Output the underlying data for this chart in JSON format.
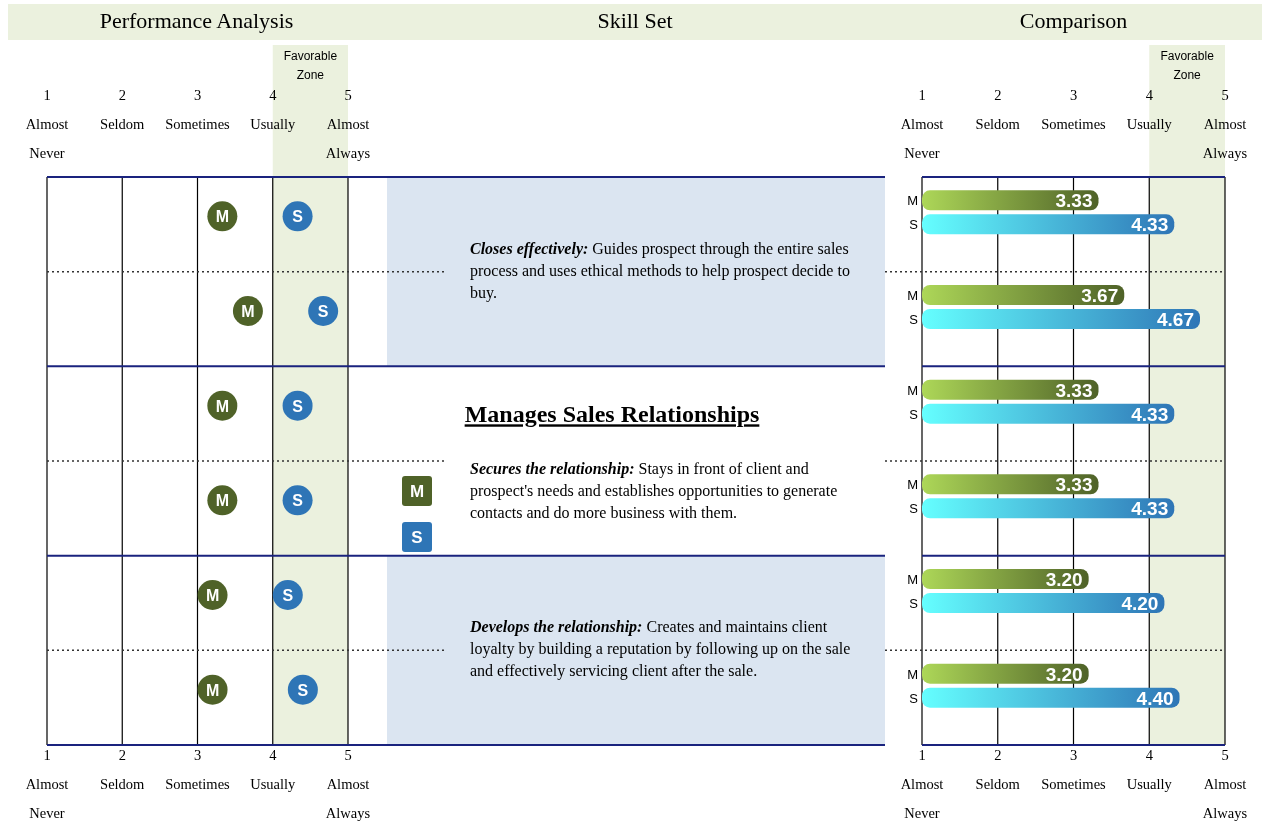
{
  "chart_data": [
    {
      "type": "scatter",
      "title": "Performance Analysis",
      "orientation": "horizontal",
      "categories": [
        null,
        null,
        null,
        null,
        null,
        null
      ],
      "series": [
        {
          "name": "M",
          "color": "#4f6228",
          "values": [
            3.33,
            3.67,
            3.33,
            3.33,
            3.2,
            3.2
          ]
        },
        {
          "name": "S",
          "color": "#2e75b6",
          "values": [
            4.33,
            4.67,
            4.33,
            4.33,
            4.2,
            4.4
          ]
        }
      ],
      "xlim": [
        1,
        5
      ],
      "xticks": [
        {
          "value": 1,
          "label": "1\nAlmost\nNever"
        },
        {
          "value": 2,
          "label": "2\nSeldom"
        },
        {
          "value": 3,
          "label": "3\nSometimes"
        },
        {
          "value": 4,
          "label": "4\nUsually"
        },
        {
          "value": 5,
          "label": "5\nAlmost\nAlways"
        }
      ],
      "x2lim": [
        1,
        5
      ],
      "x2ticks": [
        {
          "value": 1,
          "label": "1\nAlmost\nNever"
        },
        {
          "value": 2,
          "label": "2\nSeldom"
        },
        {
          "value": 3,
          "label": "3\nSometimes"
        },
        {
          "value": 4,
          "label": "4\nUsually"
        },
        {
          "value": 5,
          "label": "5\nAlmost\nAlways"
        }
      ],
      "bands": [
        {
          "axis": "x",
          "from": 4,
          "to": 5,
          "label": "Favorable Zone",
          "color": "#ebf1de"
        }
      ],
      "grid": "x",
      "marker": "circle",
      "legend": "right"
    },
    {
      "type": "other",
      "title": "Skill Set",
      "subtitle": "Manages Sales Relationships",
      "annotations": [
        "Closes effectively: Guides prospect through the entire sales process and uses ethical methods to help prospect decide to buy.",
        "Secures the relationship: Stays in front of client and prospect's needs and establishes opportunities to generate contacts and do more business with them.",
        "Develops the relationship: Creates and maintains client loyalty by building a reputation by following up on the sale and effectively servicing client after the sale."
      ]
    },
    {
      "type": "bar",
      "title": "Comparison",
      "orientation": "horizontal",
      "categories": [
        null,
        null,
        null,
        null,
        null,
        null
      ],
      "series": [
        {
          "name": "M",
          "color": "#4f6228",
          "values": [
            3.33,
            3.67,
            3.33,
            3.33,
            3.2,
            3.2
          ],
          "value_labels": [
            "3.33",
            "3.67",
            "3.33",
            "3.33",
            "3.20",
            "3.20"
          ]
        },
        {
          "name": "S",
          "color": "#2e75b6",
          "values": [
            4.33,
            4.67,
            4.33,
            4.33,
            4.2,
            4.4
          ],
          "value_labels": [
            "4.33",
            "4.67",
            "4.33",
            "4.33",
            "4.20",
            "4.40"
          ]
        }
      ],
      "xlim": [
        1,
        5
      ],
      "xticks": [
        {
          "value": 1,
          "label": "1\nAlmost\nNever"
        },
        {
          "value": 2,
          "label": "2\nSeldom"
        },
        {
          "value": 3,
          "label": "3\nSometimes"
        },
        {
          "value": 4,
          "label": "4\nUsually"
        },
        {
          "value": 5,
          "label": "5\nAlmost\nAlways"
        }
      ],
      "x2lim": [
        1,
        5
      ],
      "x2ticks": [
        {
          "value": 1,
          "label": "1\nAlmost\nNever"
        },
        {
          "value": 2,
          "label": "2\nSeldom"
        },
        {
          "value": 3,
          "label": "3\nSometimes"
        },
        {
          "value": 4,
          "label": "4\nUsually"
        },
        {
          "value": 5,
          "label": "5\nAlmost\nAlways"
        }
      ],
      "bands": [
        {
          "axis": "x",
          "from": 4,
          "to": 5,
          "label": "Favorable Zone",
          "color": "#ebf1de"
        }
      ],
      "grid": "x"
    }
  ]
}
